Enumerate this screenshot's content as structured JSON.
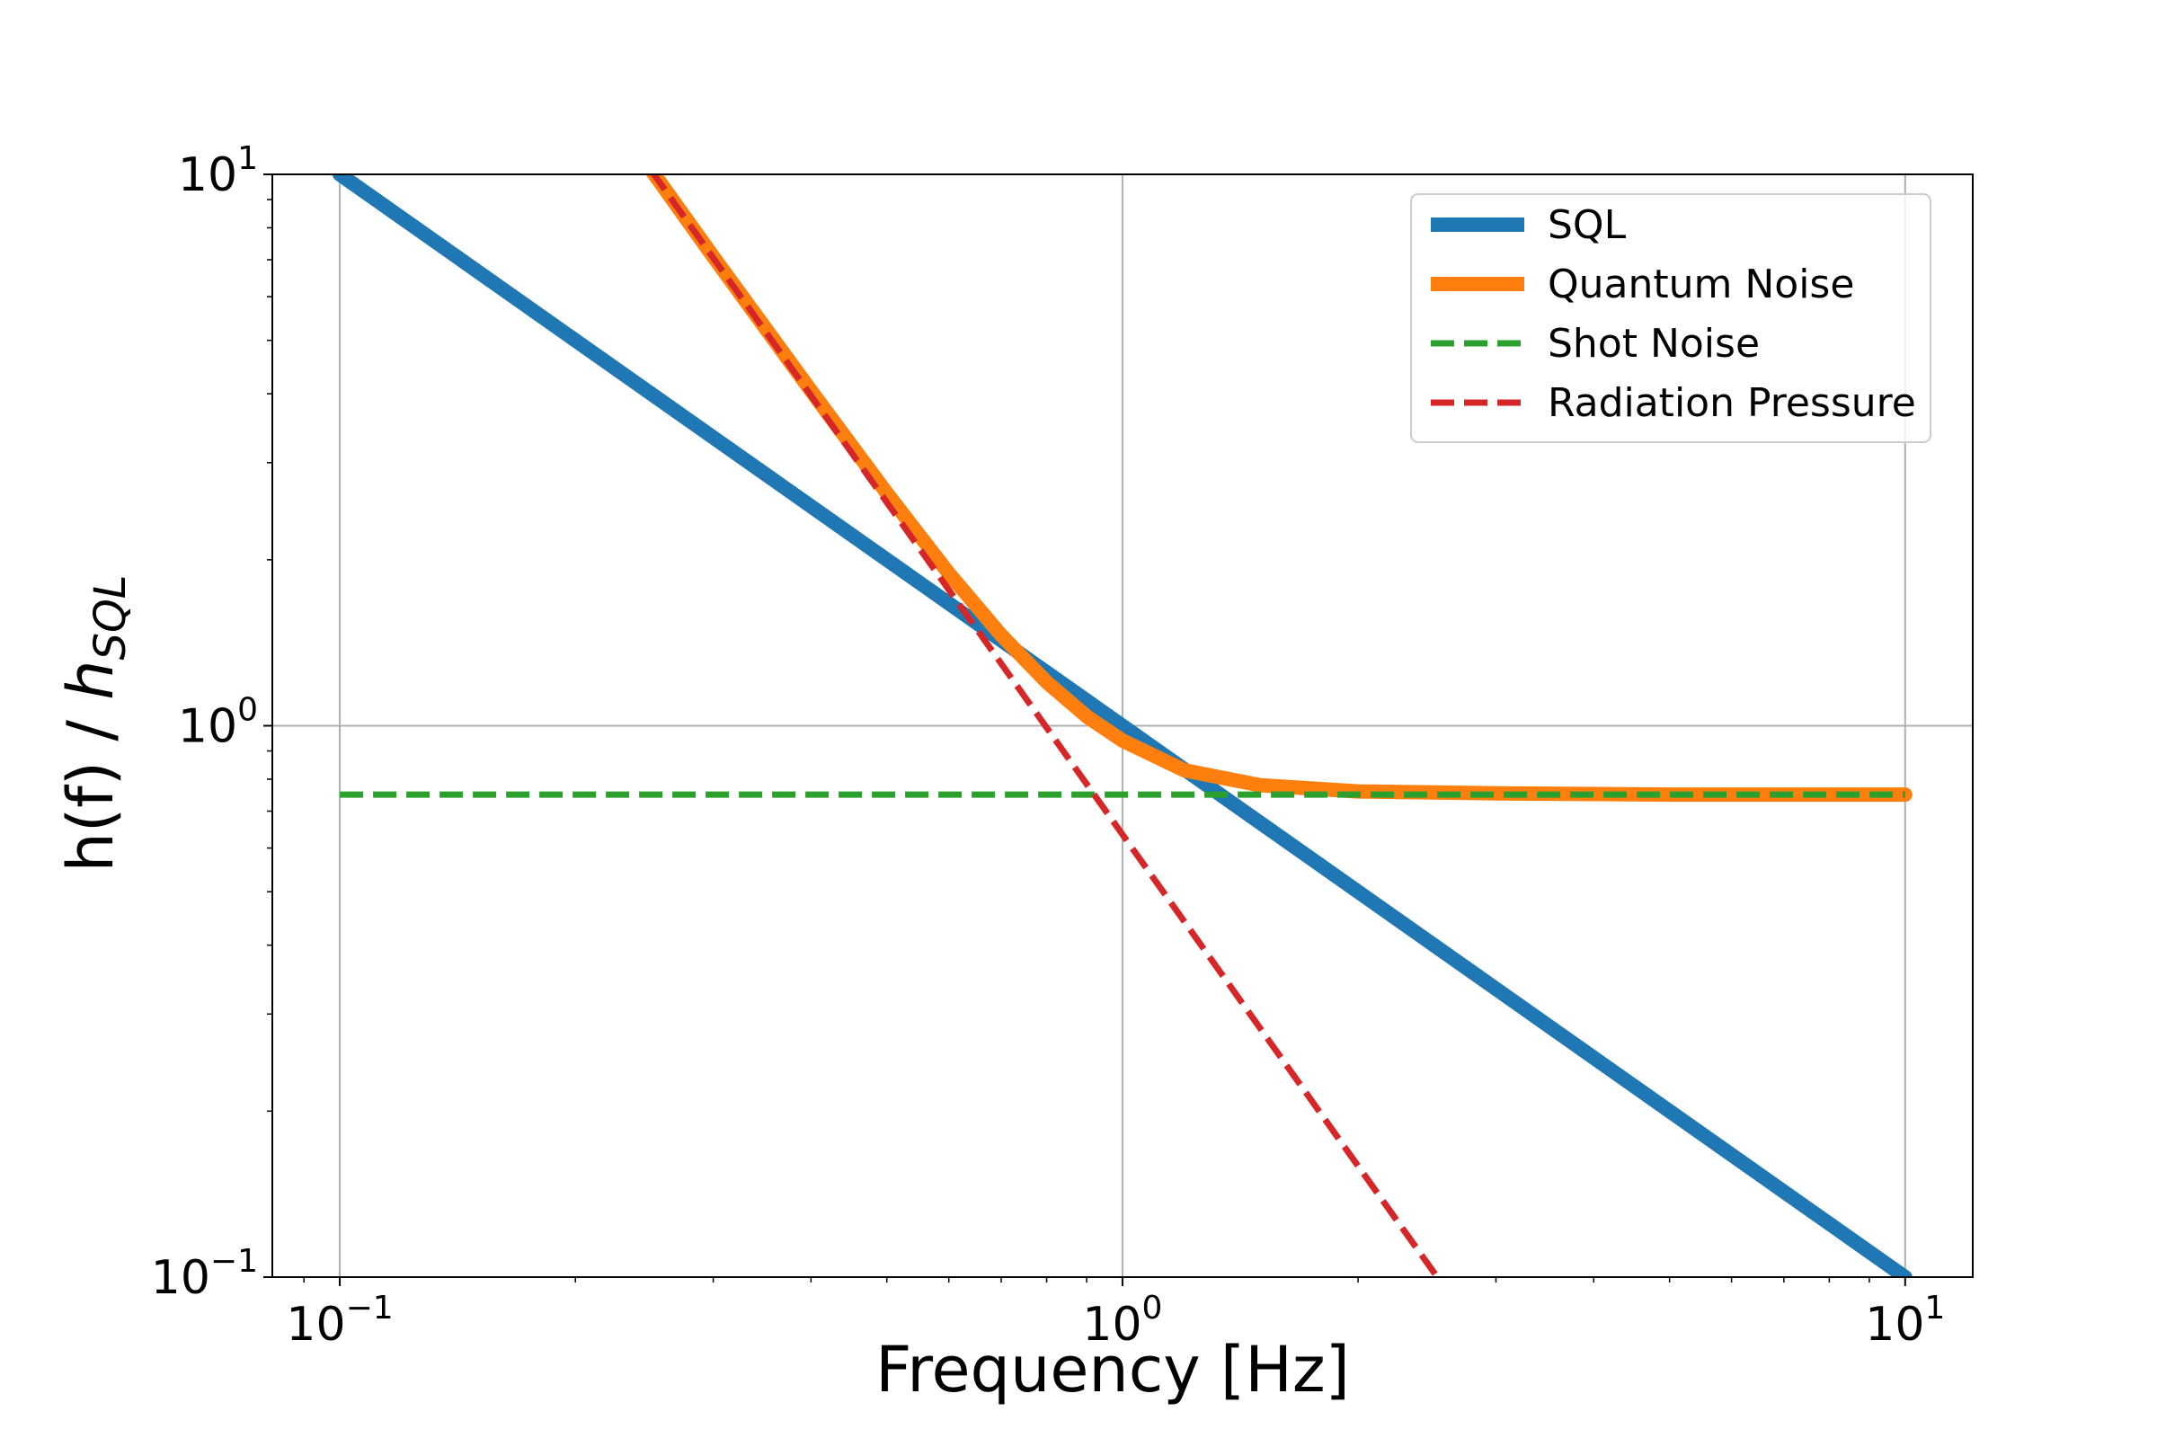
{
  "chart_data": {
    "type": "line",
    "xlabel": "Frequency [Hz]",
    "ylabel_main": "h(f) / ",
    "ylabel_italic": "h",
    "ylabel_sub": "SQL",
    "xscale": "log",
    "yscale": "log",
    "xlim": [
      0.082,
      12.2
    ],
    "ylim": [
      0.1,
      10
    ],
    "grid": true,
    "legend_position": "top-right",
    "xticks": [
      {
        "value": 0.1,
        "base": "10",
        "exp": "−1"
      },
      {
        "value": 1,
        "base": "10",
        "exp": "0"
      },
      {
        "value": 10,
        "base": "10",
        "exp": "1"
      }
    ],
    "yticks": [
      {
        "value": 0.1,
        "base": "10",
        "exp": "−1"
      },
      {
        "value": 1,
        "base": "10",
        "exp": "0"
      },
      {
        "value": 10,
        "base": "10",
        "exp": "1"
      }
    ],
    "series": [
      {
        "name": "SQL",
        "color": "#1f77b4",
        "style": "solid",
        "x": [
          0.1,
          0.2,
          0.5,
          1,
          2,
          5,
          10
        ],
        "y": [
          10,
          5,
          2,
          1,
          0.5,
          0.2,
          0.1
        ]
      },
      {
        "name": "Quantum Noise",
        "color": "#ff7f0e",
        "style": "solid",
        "x": [
          0.25,
          0.3,
          0.4,
          0.5,
          0.6,
          0.7,
          0.8,
          0.9,
          1.0,
          1.2,
          1.5,
          2,
          3,
          5,
          10
        ],
        "y": [
          10.18,
          7.09,
          4.05,
          2.64,
          1.89,
          1.46,
          1.2,
          1.04,
          0.94,
          0.83,
          0.78,
          0.76,
          0.754,
          0.75,
          0.75
        ]
      },
      {
        "name": "Shot Noise",
        "color": "#2ca02c",
        "style": "dashed",
        "x": [
          0.1,
          10
        ],
        "y": [
          0.75,
          0.75
        ]
      },
      {
        "name": "Radiation Pressure",
        "color": "#d62728",
        "style": "dashed",
        "x": [
          0.25,
          0.5,
          1,
          2,
          2.55
        ],
        "y": [
          10.16,
          2.54,
          0.635,
          0.159,
          0.098
        ]
      }
    ]
  }
}
